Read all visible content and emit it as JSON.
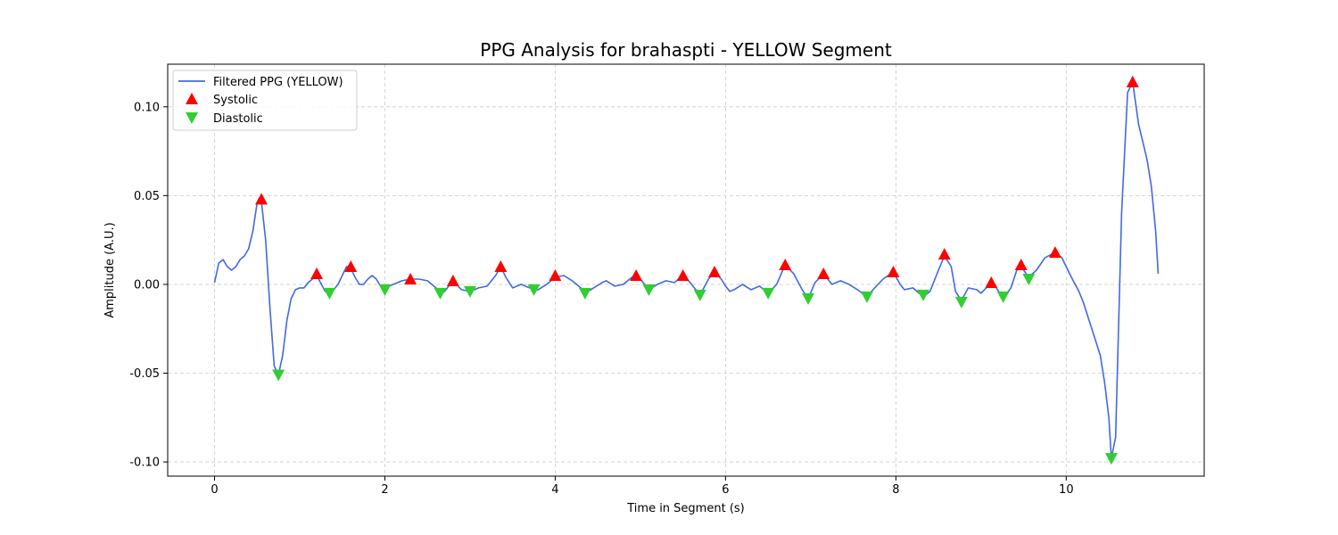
{
  "chart_data": {
    "type": "line",
    "title": "PPG Analysis for brahaspti - YELLOW Segment",
    "xlabel": "Time in Segment (s)",
    "ylabel": "Amplitude (A.U.)",
    "xlim": [
      -0.55,
      11.62
    ],
    "ylim": [
      -0.108,
      0.124
    ],
    "xticks": [
      0,
      2,
      4,
      6,
      8,
      10
    ],
    "yticks": [
      -0.1,
      -0.05,
      0.0,
      0.05,
      0.1
    ],
    "ytick_labels": [
      "-0.10",
      "-0.05",
      "0.00",
      "0.05",
      "0.10"
    ],
    "grid": true,
    "legend_position": "top-left",
    "colors": {
      "line": "#4169e1",
      "systolic": "#ff0000",
      "diastolic": "#32cd32",
      "grid": "#cccccc"
    },
    "series": [
      {
        "name": "Filtered PPG (YELLOW)",
        "kind": "line",
        "x": [
          0.0,
          0.05,
          0.1,
          0.15,
          0.2,
          0.25,
          0.3,
          0.35,
          0.4,
          0.45,
          0.5,
          0.55,
          0.6,
          0.65,
          0.7,
          0.75,
          0.8,
          0.85,
          0.9,
          0.95,
          1.0,
          1.05,
          1.1,
          1.2,
          1.3,
          1.35,
          1.4,
          1.45,
          1.5,
          1.55,
          1.6,
          1.65,
          1.7,
          1.75,
          1.8,
          1.85,
          1.9,
          1.95,
          2.0,
          2.05,
          2.1,
          2.2,
          2.3,
          2.4,
          2.5,
          2.6,
          2.65,
          2.7,
          2.8,
          2.9,
          3.0,
          3.1,
          3.2,
          3.3,
          3.36,
          3.42,
          3.5,
          3.6,
          3.7,
          3.75,
          3.8,
          3.9,
          4.0,
          4.1,
          4.2,
          4.3,
          4.35,
          4.45,
          4.55,
          4.6,
          4.7,
          4.8,
          4.9,
          4.95,
          5.0,
          5.1,
          5.2,
          5.3,
          5.4,
          5.5,
          5.55,
          5.6,
          5.7,
          5.8,
          5.87,
          5.95,
          6.0,
          6.05,
          6.1,
          6.2,
          6.3,
          6.4,
          6.5,
          6.6,
          6.7,
          6.8,
          6.9,
          6.97,
          7.05,
          7.15,
          7.25,
          7.35,
          7.45,
          7.55,
          7.66,
          7.75,
          7.85,
          7.97,
          8.05,
          8.1,
          8.2,
          8.32,
          8.4,
          8.5,
          8.57,
          8.65,
          8.7,
          8.77,
          8.85,
          8.95,
          9.0,
          9.12,
          9.18,
          9.26,
          9.35,
          9.42,
          9.47,
          9.56,
          9.65,
          9.75,
          9.87,
          9.95,
          10.05,
          10.15,
          10.2,
          10.3,
          10.4,
          10.45,
          10.5,
          10.53,
          10.58,
          10.65,
          10.72,
          10.78,
          10.85,
          10.9,
          10.95,
          11.0,
          11.05,
          11.08
        ],
        "y": [
          0.001,
          0.012,
          0.014,
          0.01,
          0.008,
          0.01,
          0.014,
          0.016,
          0.02,
          0.03,
          0.046,
          0.047,
          0.025,
          -0.013,
          -0.046,
          -0.051,
          -0.04,
          -0.02,
          -0.008,
          -0.003,
          -0.002,
          -0.002,
          0.001,
          0.005,
          -0.004,
          -0.005,
          -0.003,
          0.0,
          0.005,
          0.01,
          0.009,
          0.004,
          0.0,
          0.0,
          0.003,
          0.005,
          0.003,
          -0.001,
          -0.003,
          -0.001,
          0.0,
          0.002,
          0.003,
          0.003,
          0.002,
          -0.002,
          -0.005,
          -0.004,
          0.002,
          -0.003,
          -0.004,
          -0.002,
          -0.001,
          0.005,
          0.01,
          0.004,
          -0.002,
          0.0,
          -0.002,
          -0.003,
          -0.003,
          0.0,
          0.004,
          0.005,
          0.002,
          -0.002,
          -0.005,
          -0.002,
          0.001,
          0.002,
          -0.001,
          0.0,
          0.004,
          0.005,
          0.003,
          -0.003,
          0.0,
          0.002,
          0.001,
          0.005,
          0.003,
          0.0,
          -0.006,
          0.003,
          0.007,
          0.003,
          -0.001,
          -0.004,
          -0.003,
          0.0,
          -0.003,
          -0.001,
          -0.005,
          0.0,
          0.011,
          0.006,
          -0.003,
          -0.008,
          0.001,
          0.006,
          0.0,
          0.002,
          0.0,
          -0.003,
          -0.007,
          -0.002,
          0.003,
          0.007,
          0.0,
          -0.003,
          -0.002,
          -0.007,
          -0.004,
          0.008,
          0.016,
          0.01,
          -0.004,
          -0.009,
          -0.002,
          -0.003,
          -0.005,
          0.001,
          -0.002,
          -0.008,
          -0.002,
          0.008,
          0.01,
          0.004,
          0.008,
          0.015,
          0.018,
          0.015,
          0.005,
          -0.004,
          -0.01,
          -0.025,
          -0.04,
          -0.055,
          -0.075,
          -0.098,
          -0.086,
          0.04,
          0.108,
          0.114,
          0.09,
          0.08,
          0.07,
          0.055,
          0.03,
          0.006
        ]
      },
      {
        "name": "Systolic",
        "kind": "marker-up",
        "x": [
          0.55,
          1.2,
          1.6,
          2.3,
          2.8,
          3.36,
          4.0,
          4.95,
          5.5,
          5.87,
          6.7,
          7.15,
          7.97,
          8.57,
          9.12,
          9.47,
          9.87,
          10.78
        ],
        "y": [
          0.048,
          0.006,
          0.01,
          0.003,
          0.002,
          0.01,
          0.005,
          0.005,
          0.005,
          0.007,
          0.011,
          0.006,
          0.007,
          0.017,
          0.001,
          0.011,
          0.018,
          0.114
        ]
      },
      {
        "name": "Diastolic",
        "kind": "marker-down",
        "x": [
          0.75,
          1.35,
          2.0,
          2.65,
          3.0,
          3.75,
          4.35,
          5.1,
          5.7,
          6.5,
          6.97,
          7.66,
          8.32,
          8.77,
          9.26,
          9.56,
          10.53
        ],
        "y": [
          -0.051,
          -0.005,
          -0.003,
          -0.005,
          -0.004,
          -0.003,
          -0.005,
          -0.003,
          -0.006,
          -0.005,
          -0.008,
          -0.007,
          -0.006,
          -0.01,
          -0.007,
          0.003,
          -0.098
        ]
      }
    ]
  }
}
